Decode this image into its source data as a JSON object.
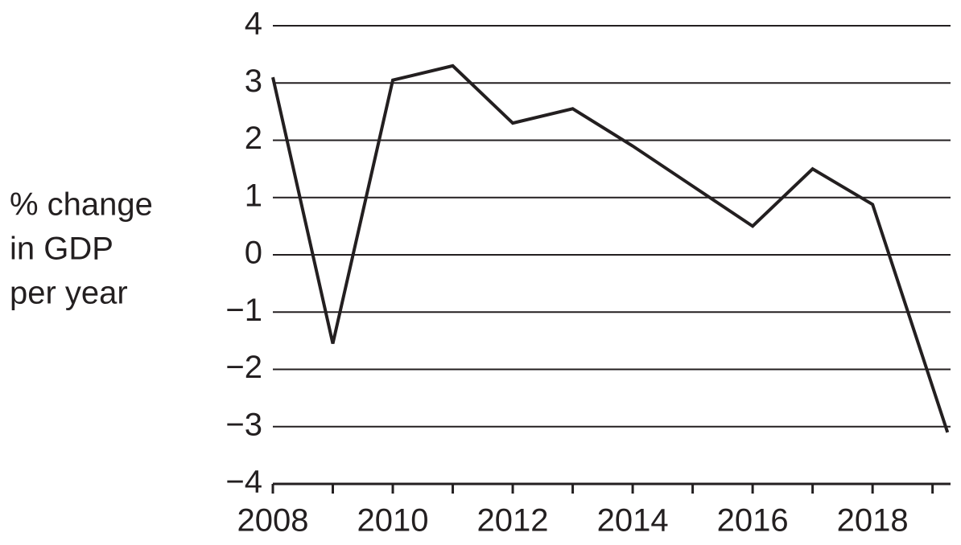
{
  "chart_data": {
    "type": "line",
    "ylabel": [
      "% change",
      "in GDP",
      "per year"
    ],
    "x": [
      2008,
      2009,
      2010,
      2011,
      2012,
      2013,
      2014,
      2015,
      2016,
      2017,
      2018,
      2019.25
    ],
    "series": [
      {
        "color": "#231f20",
        "values": [
          3.1,
          -1.55,
          3.05,
          3.3,
          2.3,
          2.55,
          1.9,
          1.2,
          0.5,
          1.5,
          0.88,
          -3.1
        ]
      }
    ],
    "xlim": [
      2008,
      2019.3
    ],
    "xticks": [
      2008,
      2010,
      2012,
      2014,
      2016,
      2018
    ],
    "xminorticks": [
      2009,
      2011,
      2013,
      2015,
      2017,
      2019
    ],
    "ylim": [
      -4,
      4
    ],
    "yticks": [
      {
        "value": -4,
        "label": "−4"
      },
      {
        "value": -3,
        "label": "−3"
      },
      {
        "value": -2,
        "label": "−2"
      },
      {
        "value": -1,
        "label": "−1"
      },
      0,
      1,
      2,
      3,
      4
    ],
    "grid": true
  }
}
